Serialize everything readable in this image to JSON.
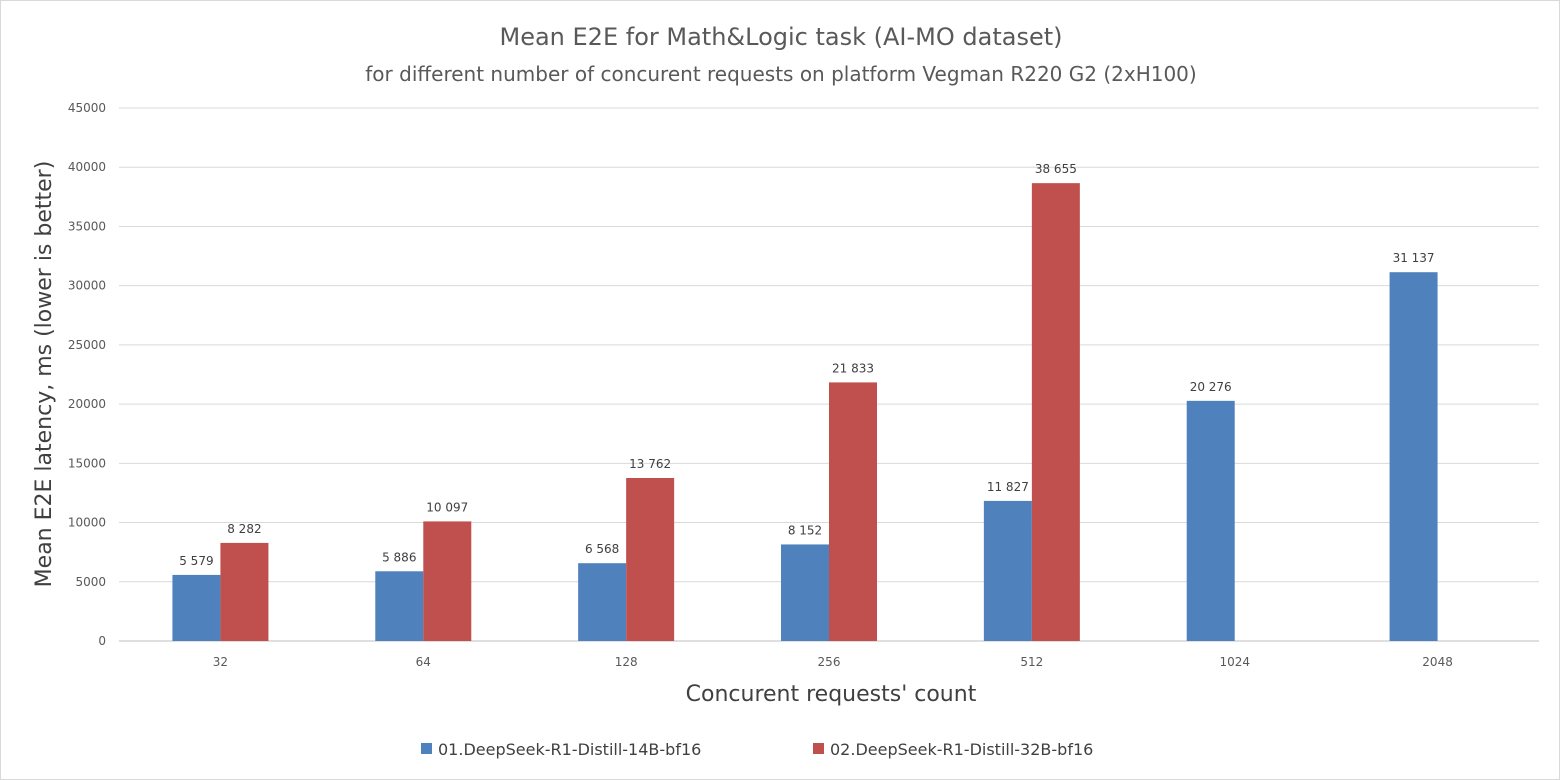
{
  "chart_data": {
    "type": "bar",
    "title": "Mean E2E for Math&Logic task (AI-MO dataset)",
    "subtitle": "for different number of concurent requests on platform Vegman R220 G2 (2xH100)",
    "xlabel": "Concurent requests' count",
    "ylabel": "Mean E2E latency, ms (lower is better)",
    "categories": [
      "32",
      "64",
      "128",
      "256",
      "512",
      "1024",
      "2048"
    ],
    "ylim": [
      0,
      45000
    ],
    "yticks": [
      0,
      5000,
      10000,
      15000,
      20000,
      25000,
      30000,
      35000,
      40000,
      45000
    ],
    "ytick_labels": [
      "0",
      "5000",
      "10000",
      "15000",
      "20000",
      "25000",
      "30000",
      "35000",
      "40000",
      "45000"
    ],
    "grid": true,
    "legend_position": "bottom-center",
    "series": [
      {
        "name": "01.DeepSeek-R1-Distill-14B-bf16",
        "color": "#4f81bd",
        "values": [
          5579,
          5886,
          6568,
          8152,
          11827,
          20276,
          31137
        ],
        "labels": [
          "5 579",
          "5 886",
          "6 568",
          "8 152",
          "11 827",
          "20 276",
          "31 137"
        ]
      },
      {
        "name": "02.DeepSeek-R1-Distill-32B-bf16",
        "color": "#c0504d",
        "values": [
          8282,
          10097,
          13762,
          21833,
          38655,
          null,
          null
        ],
        "labels": [
          "8 282",
          "10 097",
          "13 762",
          "21 833",
          "38 655",
          null,
          null
        ]
      }
    ]
  }
}
